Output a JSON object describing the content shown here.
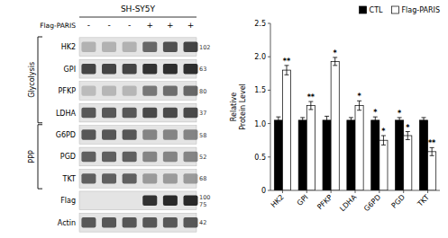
{
  "chart_data": [
    {
      "type": "blot",
      "title": "SH-SY5Y",
      "column_header": "Flag-PARIS",
      "columns": [
        "-",
        "-",
        "-",
        "+",
        "+",
        "+"
      ],
      "categories": [
        "HK2",
        "GPI",
        "PFKP",
        "LDHA",
        "G6PD",
        "PGD",
        "TKT",
        "Flag",
        "Actin"
      ],
      "row_notes": [
        [
          "102"
        ],
        [
          "63"
        ],
        [
          "80"
        ],
        [
          "37"
        ],
        [
          "58"
        ],
        [
          "52"
        ],
        [
          "68"
        ],
        [
          "100",
          "75"
        ],
        [
          "42"
        ]
      ],
      "groups": [
        {
          "name": "Glycolysis",
          "rows": [
            0,
            1,
            2,
            3
          ]
        },
        {
          "name": "PPP",
          "rows": [
            4,
            5,
            6
          ]
        }
      ],
      "cells": [
        [
          0.22,
          0.22,
          0.22,
          0.55,
          0.65,
          0.7
        ],
        [
          0.7,
          0.7,
          0.7,
          0.78,
          0.8,
          0.8
        ],
        [
          0.18,
          0.2,
          0.2,
          0.48,
          0.52,
          0.55
        ],
        [
          0.62,
          0.62,
          0.62,
          0.68,
          0.68,
          0.68
        ],
        [
          0.62,
          0.62,
          0.62,
          0.42,
          0.42,
          0.42
        ],
        [
          0.58,
          0.58,
          0.58,
          0.42,
          0.42,
          0.42
        ],
        [
          0.58,
          0.58,
          0.58,
          0.32,
          0.32,
          0.32
        ],
        [
          0.0,
          0.0,
          0.0,
          0.78,
          0.82,
          0.82
        ],
        [
          0.62,
          0.62,
          0.62,
          0.62,
          0.62,
          0.62
        ]
      ]
    },
    {
      "type": "bar",
      "categories": [
        "HK2",
        "GPI",
        "PFKP",
        "LDHA",
        "G6PD",
        "PGD",
        "TKT"
      ],
      "series": [
        {
          "name": "CTL",
          "color": "#000000",
          "values": [
            1.05,
            1.05,
            1.05,
            1.05,
            1.05,
            1.05,
            1.05
          ],
          "errors": [
            0.05,
            0.04,
            0.06,
            0.04,
            0.05,
            0.04,
            0.04
          ],
          "significance": [
            null,
            null,
            null,
            null,
            "*",
            "*",
            null
          ]
        },
        {
          "name": "Flag-PARIS",
          "color": "#ffffff",
          "values": [
            1.8,
            1.27,
            1.93,
            1.27,
            0.75,
            0.82,
            0.58
          ],
          "errors": [
            0.07,
            0.06,
            0.06,
            0.07,
            0.07,
            0.06,
            0.06
          ],
          "significance": [
            "**",
            "**",
            "*",
            "*",
            "*",
            "*",
            "**"
          ]
        }
      ],
      "y_label": "Relative\nProtein Level",
      "ylim": [
        0,
        2.5
      ],
      "yticks": [
        0,
        0.5,
        {
          "value": 1,
          "label": "1.0"
        },
        1.5,
        {
          "value": 2,
          "label": "2.0"
        },
        2.5
      ],
      "grid": false,
      "legend": "top"
    }
  ]
}
